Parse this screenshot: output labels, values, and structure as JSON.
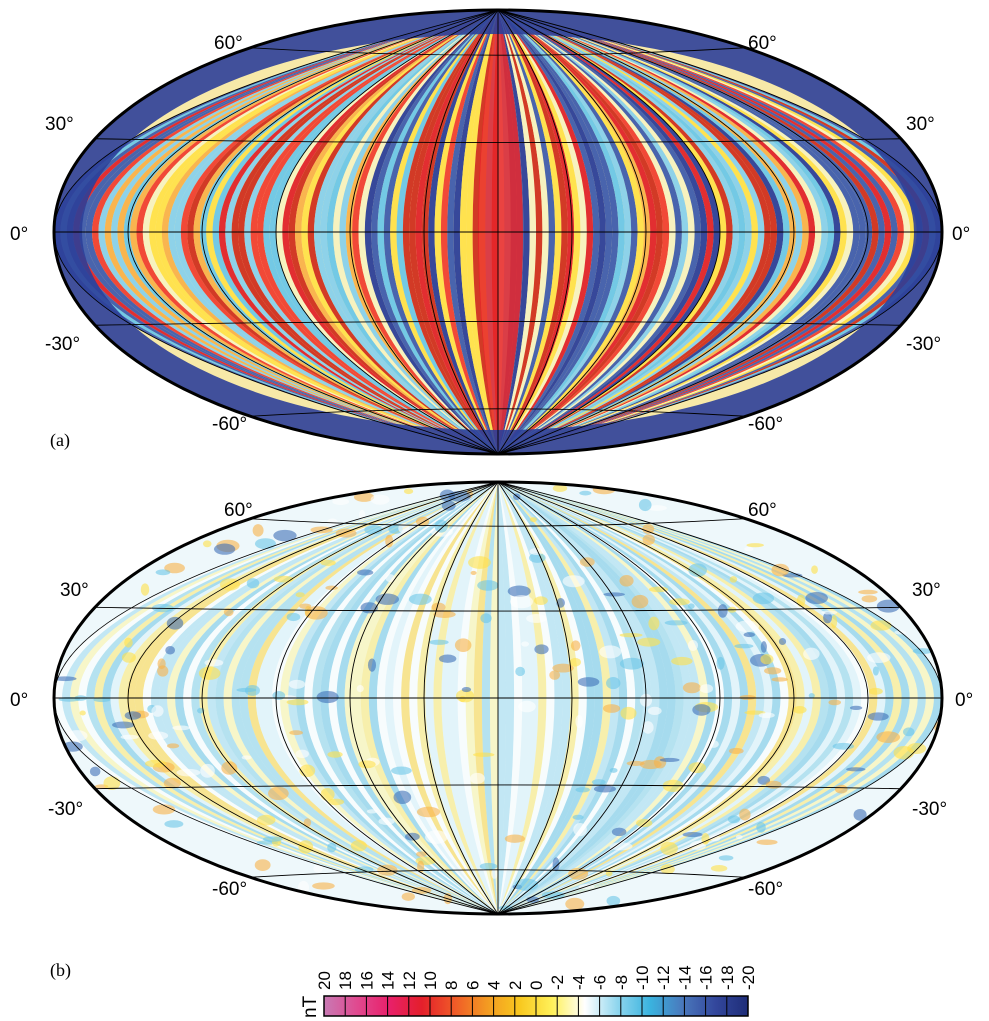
{
  "figure": {
    "projection": "hammer-aitoff (global)",
    "panels": [
      {
        "label": "(a)",
        "lat_labels": [
          "60°",
          "30°",
          "0°",
          "-30°",
          "-60°"
        ],
        "pattern": "strong longitudinal stripes",
        "stripe_colors": [
          "#2c3f99",
          "#f04030",
          "#ffe14a",
          "#6cc7e8",
          "#d0301f",
          "#f7f2c0",
          "#3f5dad",
          "#f9b24a",
          "#88d1ec",
          "#e0242a"
        ]
      },
      {
        "label": "(b)",
        "lat_labels": [
          "60°",
          "30°",
          "0°",
          "-30°",
          "-60°"
        ],
        "pattern": "weak mottled field",
        "stripe_colors": [
          "#86cfe8",
          "#fff4a0",
          "#ffffff",
          "#9fd9ee",
          "#ffe86b",
          "#d9f0fa",
          "#ffd33a",
          "#6bc3e4"
        ]
      }
    ]
  },
  "colorbar": {
    "unit": "nT",
    "ticks": [
      "20",
      "18",
      "16",
      "14",
      "12",
      "10",
      "8",
      "6",
      "4",
      "2",
      "0",
      "-2",
      "-4",
      "-6",
      "-8",
      "-10",
      "-12",
      "-14",
      "-16",
      "-18",
      "-20"
    ],
    "range": [
      20,
      -20
    ],
    "colors": [
      "#c87ab4",
      "#e04a90",
      "#e8206a",
      "#e41f2b",
      "#f05a28",
      "#f39a22",
      "#f8c81f",
      "#fff15a",
      "#ffffff",
      "#8fd6ee",
      "#3ab3df",
      "#4a78bc",
      "#33479c",
      "#1e2d78"
    ]
  }
}
